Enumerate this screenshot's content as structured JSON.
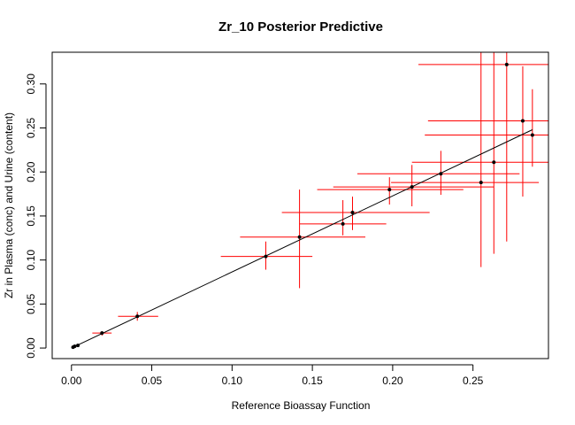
{
  "chart_data": {
    "type": "scatter",
    "title": "Zr_10  Posterior Predictive",
    "xlabel": "Reference Bioassay Function",
    "ylabel": "Zr in Plasma (conc) and Urine (content)",
    "xlim": [
      -0.012,
      0.297
    ],
    "ylim": [
      -0.012,
      0.336
    ],
    "xticks": [
      0.0,
      0.05,
      0.1,
      0.15,
      0.2,
      0.25
    ],
    "xtick_labels": [
      "0.00",
      "0.05",
      "0.10",
      "0.15",
      "0.20",
      "0.25"
    ],
    "yticks": [
      0.0,
      0.05,
      0.1,
      0.15,
      0.2,
      0.25,
      0.3
    ],
    "ytick_labels": [
      "0.00",
      "0.05",
      "0.10",
      "0.15",
      "0.20",
      "0.25",
      "0.30"
    ],
    "grid": false,
    "legend": "none",
    "colors": {
      "points": "#000000",
      "error_bars": "#ff0000",
      "fit_line": "#000000"
    },
    "fit_line": {
      "x": [
        0.0,
        0.287
      ],
      "y": [
        0.0,
        0.248
      ]
    },
    "points": [
      {
        "x": 0.001,
        "y": 0.001,
        "x_lo": 0.0,
        "x_hi": 0.002,
        "y_lo": 0.0,
        "y_hi": 0.002
      },
      {
        "x": 0.002,
        "y": 0.002,
        "x_lo": 0.001,
        "x_hi": 0.003,
        "y_lo": 0.001,
        "y_hi": 0.003
      },
      {
        "x": 0.004,
        "y": 0.003,
        "x_lo": 0.003,
        "x_hi": 0.005,
        "y_lo": 0.002,
        "y_hi": 0.004
      },
      {
        "x": 0.019,
        "y": 0.017,
        "x_lo": 0.013,
        "x_hi": 0.025,
        "y_lo": 0.014,
        "y_hi": 0.019
      },
      {
        "x": 0.041,
        "y": 0.036,
        "x_lo": 0.029,
        "x_hi": 0.054,
        "y_lo": 0.031,
        "y_hi": 0.041
      },
      {
        "x": 0.121,
        "y": 0.104,
        "x_lo": 0.093,
        "x_hi": 0.15,
        "y_lo": 0.089,
        "y_hi": 0.121
      },
      {
        "x": 0.142,
        "y": 0.126,
        "x_lo": 0.105,
        "x_hi": 0.183,
        "y_lo": 0.068,
        "y_hi": 0.18
      },
      {
        "x": 0.169,
        "y": 0.141,
        "x_lo": 0.142,
        "x_hi": 0.196,
        "y_lo": 0.128,
        "y_hi": 0.168
      },
      {
        "x": 0.175,
        "y": 0.154,
        "x_lo": 0.131,
        "x_hi": 0.223,
        "y_lo": 0.134,
        "y_hi": 0.172
      },
      {
        "x": 0.198,
        "y": 0.18,
        "x_lo": 0.153,
        "x_hi": 0.244,
        "y_lo": 0.163,
        "y_hi": 0.194
      },
      {
        "x": 0.212,
        "y": 0.183,
        "x_lo": 0.163,
        "x_hi": 0.263,
        "y_lo": 0.161,
        "y_hi": 0.208
      },
      {
        "x": 0.23,
        "y": 0.198,
        "x_lo": 0.178,
        "x_hi": 0.279,
        "y_lo": 0.174,
        "y_hi": 0.224
      },
      {
        "x": 0.255,
        "y": 0.188,
        "x_lo": 0.199,
        "x_hi": 0.291,
        "y_lo": 0.092,
        "y_hi": 0.337
      },
      {
        "x": 0.263,
        "y": 0.211,
        "x_lo": 0.212,
        "x_hi": 0.3,
        "y_lo": 0.107,
        "y_hi": 0.337
      },
      {
        "x": 0.271,
        "y": 0.322,
        "x_lo": 0.216,
        "x_hi": 0.3,
        "y_lo": 0.121,
        "y_hi": 0.337
      },
      {
        "x": 0.281,
        "y": 0.258,
        "x_lo": 0.222,
        "x_hi": 0.3,
        "y_lo": 0.172,
        "y_hi": 0.32
      },
      {
        "x": 0.287,
        "y": 0.242,
        "x_lo": 0.22,
        "x_hi": 0.3,
        "y_lo": 0.206,
        "y_hi": 0.294
      }
    ]
  }
}
